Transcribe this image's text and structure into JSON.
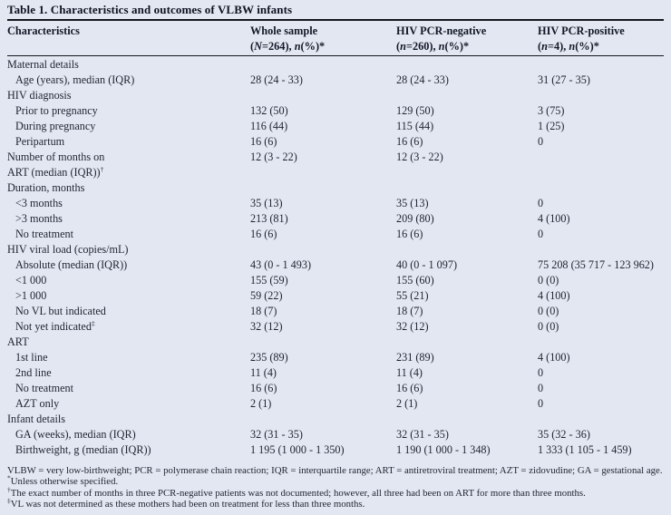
{
  "title": "Table 1. Characteristics and outcomes of VLBW infants",
  "colors": {
    "background": "#e3e7f1",
    "text": "#1d2433",
    "rule": "#15171c"
  },
  "columns": [
    {
      "parts": [
        {
          "text": "Characteristics",
          "italic": false
        }
      ],
      "parts2": []
    },
    {
      "parts": [
        {
          "text": "Whole sample",
          "italic": false
        }
      ],
      "parts2": [
        {
          "text": "(",
          "italic": false
        },
        {
          "text": "N",
          "italic": true
        },
        {
          "text": "=264), ",
          "italic": false
        },
        {
          "text": "n",
          "italic": true
        },
        {
          "text": "(%)*",
          "italic": false
        }
      ]
    },
    {
      "parts": [
        {
          "text": "HIV PCR-negative",
          "italic": false
        }
      ],
      "parts2": [
        {
          "text": "(",
          "italic": false
        },
        {
          "text": "n",
          "italic": true
        },
        {
          "text": "=260), ",
          "italic": false
        },
        {
          "text": "n",
          "italic": true
        },
        {
          "text": "(%)*",
          "italic": false
        }
      ]
    },
    {
      "parts": [
        {
          "text": "HIV PCR-positive",
          "italic": false
        }
      ],
      "parts2": [
        {
          "text": "(",
          "italic": false
        },
        {
          "text": "n",
          "italic": true
        },
        {
          "text": "=4), ",
          "italic": false
        },
        {
          "text": "n",
          "italic": true
        },
        {
          "text": "(%)*",
          "italic": false
        }
      ]
    }
  ],
  "rows": [
    {
      "label": "Maternal details",
      "indent": false,
      "values": [
        "",
        "",
        ""
      ]
    },
    {
      "label": "Age (years), median (IQR)",
      "indent": true,
      "values": [
        "28 (24 - 33)",
        "28 (24 - 33)",
        "31 (27 - 35)"
      ]
    },
    {
      "label": "HIV diagnosis",
      "indent": false,
      "values": [
        "",
        "",
        ""
      ]
    },
    {
      "label": "Prior to pregnancy",
      "indent": true,
      "values": [
        "132 (50)",
        "129 (50)",
        "3 (75)"
      ]
    },
    {
      "label": "During pregnancy",
      "indent": true,
      "values": [
        "116 (44)",
        "115 (44)",
        "1 (25)"
      ]
    },
    {
      "label": "Peripartum",
      "indent": true,
      "values": [
        "16 (6)",
        "16 (6)",
        "0"
      ]
    },
    {
      "label": "Number of months on",
      "label2": "ART (median (IQR))",
      "sup": "†",
      "indent": false,
      "values": [
        "12 (3 - 22)",
        "12 (3 - 22)",
        ""
      ]
    },
    {
      "label": "Duration, months",
      "indent": false,
      "values": [
        "",
        "",
        ""
      ]
    },
    {
      "label": "<3 months",
      "indent": true,
      "values": [
        "35 (13)",
        "35 (13)",
        "0"
      ]
    },
    {
      "label": ">3 months",
      "indent": true,
      "values": [
        "213 (81)",
        "209 (80)",
        "4 (100)"
      ]
    },
    {
      "label": "No treatment",
      "indent": true,
      "values": [
        "16 (6)",
        "16 (6)",
        "0"
      ]
    },
    {
      "label": "HIV viral load (copies/mL)",
      "indent": false,
      "values": [
        "",
        "",
        ""
      ]
    },
    {
      "label": "Absolute (median (IQR))",
      "indent": true,
      "values": [
        "43 (0 - 1 493)",
        "40 (0 - 1 097)",
        "75 208 (35 717 - 123 962)"
      ]
    },
    {
      "label": "<1 000",
      "indent": true,
      "values": [
        "155 (59)",
        "155 (60)",
        "0 (0)"
      ]
    },
    {
      "label": ">1 000",
      "indent": true,
      "values": [
        "59 (22)",
        "55 (21)",
        "4 (100)"
      ]
    },
    {
      "label": "No VL but indicated",
      "indent": true,
      "values": [
        "18 (7)",
        "18 (7)",
        "0 (0)"
      ]
    },
    {
      "label": "Not yet indicated",
      "sup": "‡",
      "indent": true,
      "values": [
        "32 (12)",
        "32 (12)",
        "0 (0)"
      ]
    },
    {
      "label": "ART",
      "indent": false,
      "values": [
        "",
        "",
        ""
      ]
    },
    {
      "label": "1st line",
      "indent": true,
      "values": [
        "235 (89)",
        "231 (89)",
        "4 (100)"
      ]
    },
    {
      "label": "2nd line",
      "indent": true,
      "values": [
        "11 (4)",
        "11 (4)",
        "0"
      ]
    },
    {
      "label": "No treatment",
      "indent": true,
      "values": [
        "16 (6)",
        "16 (6)",
        "0"
      ]
    },
    {
      "label": "AZT only",
      "indent": true,
      "values": [
        "2 (1)",
        "2 (1)",
        "0"
      ]
    },
    {
      "label": "Infant details",
      "indent": false,
      "values": [
        "",
        "",
        ""
      ]
    },
    {
      "label": "GA (weeks), median (IQR)",
      "indent": true,
      "values": [
        "32 (31 - 35)",
        "32 (31 - 35)",
        "35 (32 - 36)"
      ]
    },
    {
      "label": "Birthweight, g (median (IQR))",
      "indent": true,
      "values": [
        "1 195 (1 000 - 1 350)",
        "1 190 (1 000 - 1 348)",
        "1 333 (1 105 - 1 459)"
      ]
    }
  ],
  "footnotes": [
    {
      "marker": "",
      "text": "VLBW = very low-birthweight; PCR = polymerase chain reaction; IQR = interquartile range; ART = antiretroviral treatment; AZT = zidovudine; GA = gestational age."
    },
    {
      "marker": "*",
      "text": "Unless otherwise specified."
    },
    {
      "marker": "†",
      "text": "The exact number of months in three PCR-negative patients was not documented; however, all three had been on ART for more than three months."
    },
    {
      "marker": "‡",
      "text": "VL was not determined as these mothers had been on treatment for less than three months."
    }
  ]
}
